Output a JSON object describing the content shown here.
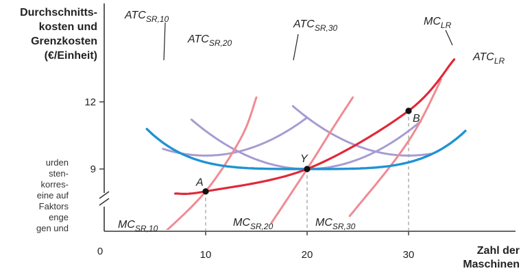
{
  "chart_data": {
    "type": "line",
    "ylabel_lines": [
      "Durchschnitts-",
      "kosten und",
      "Grenzkosten",
      "(€/Einheit)"
    ],
    "xlabel_lines": [
      "Zahl der",
      "Maschinen"
    ],
    "x_ticks": [
      10,
      20,
      30
    ],
    "y_ticks": [
      9,
      12
    ],
    "origin_label": "0",
    "xlim": [
      0,
      40
    ],
    "ylim": [
      7.2,
      14.4
    ],
    "y_axis_break": true,
    "colors": {
      "atc_sr": "#a79bd2",
      "mc_sr": "#f08a93",
      "atc_lr": "#1e93d4",
      "mc_lr": "#e02838",
      "axis": "#333333",
      "dashed": "#999999"
    },
    "series": [
      {
        "name": "ATC_SR,10",
        "label_main": "ATC",
        "label_sub": "SR,10",
        "kind": "atc_sr",
        "center": 10,
        "min": 9.6,
        "coef": 0.017,
        "x_range": [
          5.8,
          20
        ]
      },
      {
        "name": "ATC_SR,20",
        "label_main": "ATC",
        "label_sub": "SR,20",
        "kind": "atc_sr",
        "center": 20,
        "min": 9.0,
        "coef": 0.017,
        "x_range": [
          8.6,
          31.2
        ]
      },
      {
        "name": "ATC_SR,30",
        "label_main": "ATC",
        "label_sub": "SR,30",
        "kind": "atc_sr",
        "center": 30,
        "min": 9.6,
        "coef": 0.017,
        "x_range": [
          18.6,
          32.2
        ]
      },
      {
        "name": "MC_SR,10",
        "label_main": "MC",
        "label_sub": "SR,10",
        "kind": "mc_sr",
        "points": [
          [
            5.8,
            6.1
          ],
          [
            10,
            8.0
          ],
          [
            13.5,
            10.4
          ],
          [
            15,
            12.2
          ]
        ]
      },
      {
        "name": "MC_SR,20",
        "label_main": "MC",
        "label_sub": "SR,20",
        "kind": "mc_sr",
        "points": [
          [
            16.5,
            6.6
          ],
          [
            20,
            9.0
          ],
          [
            22.5,
            10.8
          ],
          [
            24.5,
            12.2
          ]
        ]
      },
      {
        "name": "MC_SR,30",
        "label_main": "MC",
        "label_sub": "SR,30",
        "kind": "mc_sr",
        "points": [
          [
            24.2,
            6.9
          ],
          [
            28.5,
            9.3
          ],
          [
            31,
            11.0
          ],
          [
            33.2,
            13.0
          ]
        ]
      },
      {
        "name": "ATC_LR",
        "label_main": "ATC",
        "label_sub": "LR",
        "kind": "atc_lr"
      },
      {
        "name": "MC_LR",
        "label_main": "MC",
        "label_sub": "LR",
        "kind": "mc_lr",
        "points": [
          [
            7,
            7.9
          ],
          [
            10,
            8.0
          ],
          [
            20,
            9.0
          ],
          [
            30,
            11.6
          ],
          [
            34.5,
            13.9
          ]
        ]
      }
    ],
    "points": [
      {
        "label": "A",
        "x": 10,
        "y": 8.0
      },
      {
        "label": "Y",
        "x": 20,
        "y": 9.0
      },
      {
        "label": "B",
        "x": 30,
        "y": 11.6
      }
    ]
  },
  "side_text": [
    "urden",
    "sten-",
    "korres-",
    "eine auf",
    "Faktors",
    "enge",
    "gen und"
  ]
}
